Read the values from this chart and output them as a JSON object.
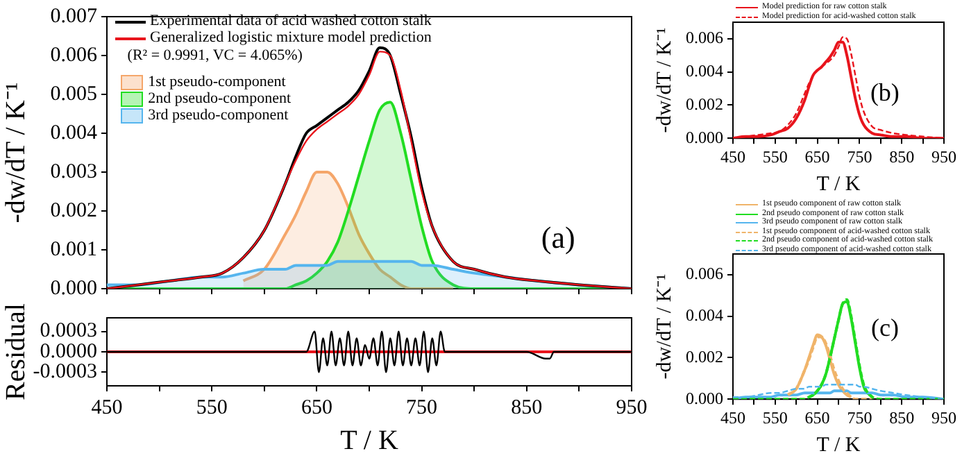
{
  "chart_data": [
    {
      "type": "line",
      "xlabel": null,
      "ylabel": "-dw/dT / K⁻¹",
      "x": [
        450,
        480,
        510,
        540,
        560,
        580,
        600,
        620,
        630,
        640,
        650,
        660,
        670,
        680,
        690,
        700,
        710,
        720,
        730,
        740,
        750,
        760,
        780,
        800,
        830,
        860,
        900,
        950
      ],
      "xlim": [
        450,
        950
      ],
      "xticks": [
        {
          "value": 450,
          "label": null
        },
        {
          "value": 500,
          "label": null
        },
        {
          "value": 550,
          "label": null
        },
        {
          "value": 600,
          "label": null
        },
        {
          "value": 650,
          "label": null
        },
        {
          "value": 700,
          "label": null
        },
        {
          "value": 750,
          "label": null
        },
        {
          "value": 800,
          "label": null
        },
        {
          "value": 850,
          "label": null
        },
        {
          "value": 900,
          "label": null
        },
        {
          "value": 950,
          "label": null
        }
      ],
      "ylim": [
        0,
        0.007
      ],
      "yticks": [
        {
          "value": 0,
          "label": "0.000"
        },
        {
          "value": 0.001,
          "label": "0.001"
        },
        {
          "value": 0.002,
          "label": "0.002"
        },
        {
          "value": 0.003,
          "label": "0.003"
        },
        {
          "value": 0.004,
          "label": "0.004"
        },
        {
          "value": 0.005,
          "label": "0.005"
        },
        {
          "value": 0.006,
          "label": "0.006"
        },
        {
          "value": 0.007,
          "label": "0.007"
        }
      ],
      "tick_labels": "y",
      "grid": false,
      "marker": "none",
      "legend": "top left",
      "annotations": [
        "(R² = 0.9991, VC = 4.065%)",
        "(a)"
      ],
      "series": [
        {
          "name": "1st pseudo-component",
          "type": "area",
          "color": "#f5a66a",
          "values": [
            null,
            null,
            null,
            null,
            null,
            0.0002,
            0.0005,
            0.0014,
            0.0019,
            0.0025,
            0.003,
            0.003,
            0.0027,
            0.0021,
            0.0014,
            0.0009,
            0.0005,
            0.0003,
            0.0001,
            0,
            0,
            0,
            0,
            null,
            null,
            null,
            null,
            null
          ]
        },
        {
          "name": "2nd pseudo-component",
          "type": "area",
          "color": "#22dd22",
          "values": [
            0,
            0,
            0,
            0,
            0,
            0,
            0,
            0,
            0.0001,
            0.0002,
            0.0004,
            0.0007,
            0.0012,
            0.002,
            0.0029,
            0.0038,
            0.0046,
            0.0048,
            0.004,
            0.0028,
            0.0016,
            0.0007,
            0.0001,
            0,
            0,
            0,
            0,
            0
          ]
        },
        {
          "name": "3rd pseudo-component",
          "type": "area",
          "color": "#55b5ee",
          "values": [
            0.0001,
            0.0001,
            0.0002,
            0.0003,
            0.0003,
            0.0004,
            0.0005,
            0.0005,
            0.0006,
            0.0006,
            0.0006,
            0.0006,
            0.0007,
            0.0007,
            0.0007,
            0.0007,
            0.0007,
            0.0007,
            0.0007,
            0.0007,
            0.0006,
            0.0006,
            0.0005,
            0.0004,
            0.0003,
            0.0002,
            0.0001,
            0
          ]
        },
        {
          "name": "Experimental data of acid washed cotton stalk",
          "color": "#000000",
          "values": [
            0,
            0.0001,
            0.0002,
            0.0003,
            0.0004,
            0.0008,
            0.0015,
            0.0027,
            0.0034,
            0.004,
            0.0042,
            0.0044,
            0.0046,
            0.0048,
            0.0051,
            0.0056,
            0.0062,
            0.006,
            0.005,
            0.0039,
            0.0026,
            0.0016,
            0.0007,
            0.0005,
            0.0003,
            0.0002,
            0.0001,
            0
          ]
        },
        {
          "name": "Generalized logistic mixture model prediction",
          "color": "#e8141c",
          "values": [
            0,
            0.0001,
            0.0002,
            0.0003,
            0.0004,
            0.0008,
            0.0015,
            0.0027,
            0.0033,
            0.0038,
            0.0041,
            0.0043,
            0.0045,
            0.0047,
            0.005,
            0.0055,
            0.0061,
            0.006,
            0.0051,
            0.0038,
            0.0025,
            0.0016,
            0.0007,
            0.0005,
            0.0003,
            0.0002,
            0.0001,
            0
          ]
        }
      ]
    },
    {
      "type": "line",
      "xlabel": "T / K",
      "ylabel": "Residual",
      "xlim": [
        450,
        950
      ],
      "xticks": [
        450,
        {
          "value": 500,
          "label": null
        },
        550,
        {
          "value": 600,
          "label": null
        },
        650,
        {
          "value": 700,
          "label": null
        },
        750,
        {
          "value": 800,
          "label": null
        },
        850,
        {
          "value": 900,
          "label": null
        },
        950
      ],
      "ylim": [
        -0.0005,
        0.0005
      ],
      "yticks": [
        {
          "value": -0.0003,
          "label": "-0.0003"
        },
        {
          "value": 0,
          "label": "0.0000"
        },
        {
          "value": 0.0003,
          "label": "0.0003"
        }
      ],
      "grid": false,
      "marker": "none",
      "series": [
        {
          "color": "#e8141c",
          "x": [
            450,
            950
          ],
          "values": [
            0,
            0
          ]
        },
        {
          "color": "#000000",
          "x": [
            450,
            500,
            550,
            600,
            640,
            648,
            652,
            656,
            660,
            664,
            668,
            672,
            676,
            680,
            684,
            688,
            692,
            696,
            700,
            704,
            708,
            712,
            716,
            720,
            724,
            728,
            732,
            736,
            740,
            744,
            748,
            752,
            756,
            760,
            764,
            768,
            772,
            800,
            850,
            868,
            872,
            876,
            900,
            950
          ],
          "values": [
            0,
            0,
            0,
            0,
            0,
            0.0003,
            -0.0003,
            0.0002,
            -0.0002,
            0.0003,
            -0.0002,
            0.0002,
            -0.0002,
            0.0003,
            -0.0002,
            0.0002,
            -0.0002,
            0.0001,
            -0.0001,
            0.0002,
            -0.0002,
            0.0003,
            -0.0003,
            0.0002,
            -0.0002,
            0.0003,
            -0.0002,
            0.0002,
            -0.0002,
            0.0002,
            -0.0002,
            0.0003,
            -0.0003,
            0.0002,
            -0.0002,
            0.0003,
            0,
            0,
            0,
            -0.0001,
            -0.0001,
            0,
            0,
            0
          ]
        }
      ]
    },
    {
      "type": "line",
      "xlabel": "T / K",
      "ylabel": "-dw/dT / K⁻¹",
      "x": [
        450,
        480,
        510,
        540,
        560,
        580,
        600,
        620,
        630,
        640,
        650,
        660,
        670,
        680,
        690,
        700,
        710,
        720,
        730,
        740,
        750,
        760,
        780,
        800,
        830,
        860,
        900,
        950
      ],
      "xlim": [
        450,
        950
      ],
      "xticks": [
        450,
        {
          "value": 500,
          "label": null
        },
        550,
        {
          "value": 600,
          "label": null
        },
        650,
        {
          "value": 700,
          "label": null
        },
        750,
        {
          "value": 800,
          "label": null
        },
        850,
        {
          "value": 900,
          "label": null
        },
        950
      ],
      "ylim": [
        0,
        0.007
      ],
      "yticks": [
        {
          "value": 0,
          "label": "0.000"
        },
        {
          "value": 0.002,
          "label": "0.002"
        },
        {
          "value": 0.004,
          "label": "0.004"
        },
        {
          "value": 0.006,
          "label": "0.006"
        }
      ],
      "grid": false,
      "marker": "none",
      "legend": "top",
      "annotations": [
        "(b)"
      ],
      "series": [
        {
          "name": "Model prediction for raw cotton stalk",
          "color": "#e8141c",
          "line_style": "solid",
          "values": [
            0,
            0.0001,
            0.0001,
            0.0002,
            0.0004,
            0.0006,
            0.0012,
            0.0023,
            0.0031,
            0.0038,
            0.0041,
            0.0043,
            0.0046,
            0.0049,
            0.0053,
            0.0058,
            0.0058,
            0.005,
            0.0037,
            0.0024,
            0.0014,
            0.0008,
            0.0003,
            0.0002,
            0.0001,
            0.0001,
            0,
            0
          ]
        },
        {
          "name": "Model prediction for acid-washed cotton stalk",
          "color": "#e8141c",
          "line_style": "dashed",
          "values": [
            0,
            0.0001,
            0.0002,
            0.0003,
            0.0004,
            0.0008,
            0.0015,
            0.0027,
            0.0033,
            0.0038,
            0.0041,
            0.0043,
            0.0045,
            0.0047,
            0.005,
            0.0055,
            0.0061,
            0.006,
            0.0051,
            0.0038,
            0.0025,
            0.0016,
            0.0007,
            0.0005,
            0.0003,
            0.0002,
            0.0001,
            0
          ]
        }
      ]
    },
    {
      "type": "line",
      "xlabel": "T / K",
      "ylabel": "-dw/dT / K⁻¹",
      "x": [
        450,
        480,
        510,
        540,
        560,
        580,
        600,
        620,
        630,
        640,
        650,
        660,
        670,
        680,
        690,
        700,
        710,
        720,
        730,
        740,
        750,
        760,
        780,
        800,
        830,
        860,
        900,
        950
      ],
      "xlim": [
        450,
        950
      ],
      "xticks": [
        450,
        {
          "value": 500,
          "label": null
        },
        550,
        {
          "value": 600,
          "label": null
        },
        650,
        {
          "value": 700,
          "label": null
        },
        750,
        {
          "value": 800,
          "label": null
        },
        850,
        {
          "value": 900,
          "label": null
        },
        950
      ],
      "ylim": [
        0,
        0.007
      ],
      "yticks": [
        {
          "value": 0,
          "label": "0.000"
        },
        {
          "value": 0.002,
          "label": "0.002"
        },
        {
          "value": 0.004,
          "label": "0.004"
        },
        {
          "value": 0.006,
          "label": "0.006"
        }
      ],
      "grid": false,
      "marker": "none",
      "legend": "top",
      "annotations": [
        "(c)"
      ],
      "series": [
        {
          "name": "1st pseudo component of raw cotton stalk",
          "color": "#f0b46a",
          "line_style": "solid",
          "values": [
            null,
            null,
            null,
            null,
            null,
            0.0002,
            0.0005,
            0.0014,
            0.002,
            0.0026,
            0.0031,
            0.003,
            0.0026,
            0.0019,
            0.0012,
            0.0007,
            0.0004,
            0.0002,
            0.0001,
            null,
            null,
            null,
            null,
            null,
            null,
            null,
            null,
            null
          ]
        },
        {
          "name": "2nd pseudo component of raw cotton stalk",
          "color": "#22dd22",
          "line_style": "solid",
          "values": [
            null,
            null,
            null,
            null,
            null,
            null,
            null,
            null,
            0.0001,
            0.0002,
            0.0004,
            0.0007,
            0.0012,
            0.002,
            0.0029,
            0.0038,
            0.0046,
            0.0047,
            0.0039,
            0.0027,
            0.0015,
            0.0006,
            0.0001,
            null,
            null,
            null,
            null,
            null
          ]
        },
        {
          "name": "3rd pseudo component of raw cotton stalk",
          "color": "#55b5ee",
          "line_style": "solid",
          "values": [
            0,
            0.0001,
            0.0001,
            0.0001,
            0.0002,
            0.0002,
            0.0002,
            0.0003,
            0.0003,
            0.0003,
            0.0003,
            0.0003,
            0.0003,
            0.0003,
            0.0004,
            0.0004,
            0.0004,
            0.0004,
            0.0003,
            0.0003,
            0.0003,
            0.0003,
            0.0003,
            0.0002,
            0.0002,
            0.0001,
            0.0001,
            0
          ]
        },
        {
          "name": "1st pseudo component of acid-washed cotton stalk",
          "color": "#f0b46a",
          "line_style": "dashed",
          "values": [
            null,
            null,
            null,
            null,
            null,
            0.0002,
            0.0005,
            0.0014,
            0.0019,
            0.0025,
            0.003,
            0.003,
            0.0027,
            0.0021,
            0.0014,
            0.0009,
            0.0005,
            0.0003,
            0.0001,
            0,
            0,
            0,
            0,
            null,
            null,
            null,
            null,
            null
          ]
        },
        {
          "name": "2nd pseudo component of acid-washed cotton stalk",
          "color": "#22dd22",
          "line_style": "dashed",
          "values": [
            0,
            0,
            0,
            0,
            0,
            0,
            0,
            0,
            0.0001,
            0.0002,
            0.0004,
            0.0007,
            0.0012,
            0.002,
            0.0029,
            0.0038,
            0.0046,
            0.0048,
            0.004,
            0.0028,
            0.0016,
            0.0007,
            0.0001,
            0,
            0,
            0,
            0,
            0
          ]
        },
        {
          "name": "3rd pseudo component of acid-washed cotton stalk",
          "color": "#55b5ee",
          "line_style": "dashed",
          "values": [
            0.0001,
            0.0001,
            0.0002,
            0.0003,
            0.0003,
            0.0004,
            0.0005,
            0.0005,
            0.0006,
            0.0006,
            0.0006,
            0.0006,
            0.0007,
            0.0007,
            0.0007,
            0.0007,
            0.0007,
            0.0007,
            0.0007,
            0.0007,
            0.0006,
            0.0006,
            0.0005,
            0.0004,
            0.0003,
            0.0002,
            0.0001,
            0
          ]
        }
      ]
    }
  ]
}
